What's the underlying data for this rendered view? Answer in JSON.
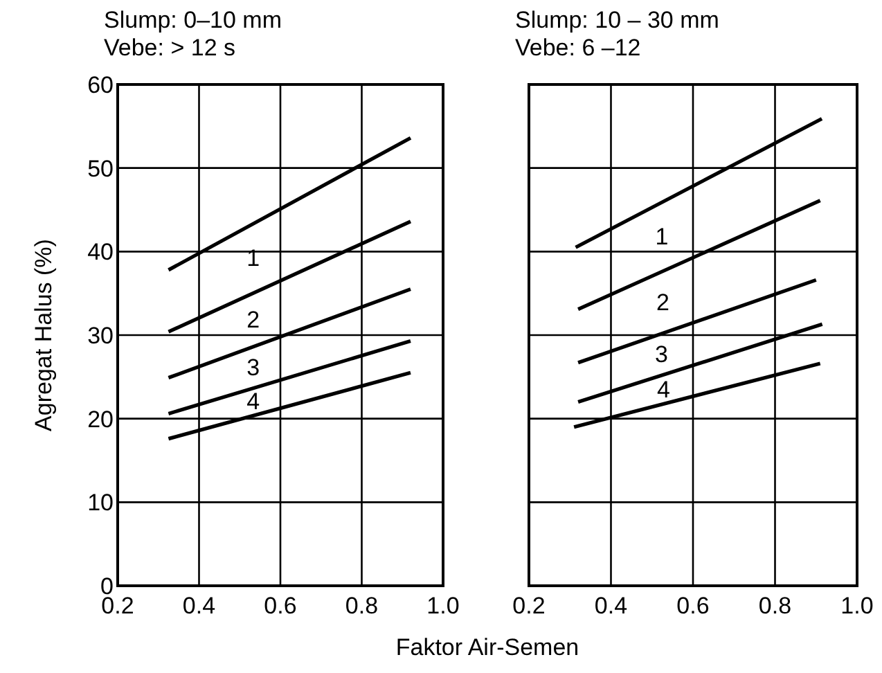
{
  "chart_data": [
    {
      "type": "line",
      "title": "Slump: 0–10 mm",
      "subtitle": "Vebe: > 12 s",
      "xlabel": "Faktor Air-Semen",
      "ylabel": "Agregat Halus (%)",
      "xlim": [
        0.2,
        1.0
      ],
      "xticks": [
        0.2,
        0.4,
        0.6,
        0.8,
        {
          "value": 1.0,
          "label": "1.0"
        }
      ],
      "ylim": [
        0,
        60
      ],
      "yticks": [
        0,
        10,
        20,
        30,
        40,
        50,
        60
      ],
      "grid": true,
      "marker": "none",
      "line_style": "solid",
      "series": [
        {
          "color": "#000000",
          "x": [
            0.325,
            0.92
          ],
          "values": [
            37.8,
            53.6
          ]
        },
        {
          "color": "#000000",
          "x": [
            0.325,
            0.92
          ],
          "values": [
            30.4,
            43.6
          ]
        },
        {
          "color": "#000000",
          "x": [
            0.325,
            0.92
          ],
          "values": [
            24.9,
            35.5
          ]
        },
        {
          "color": "#000000",
          "x": [
            0.325,
            0.92
          ],
          "values": [
            20.6,
            29.3
          ]
        },
        {
          "color": "#000000",
          "x": [
            0.325,
            0.92
          ],
          "values": [
            17.6,
            25.5
          ]
        }
      ],
      "annotations": [
        "1",
        "2",
        "3",
        "4"
      ]
    },
    {
      "type": "line",
      "title": "Slump: 10 – 30 mm",
      "subtitle": "Vebe: 6 –12",
      "xlim": [
        0.2,
        1.0
      ],
      "xticks": [
        0.2,
        0.4,
        0.6,
        0.8,
        {
          "value": 1.0,
          "label": "1.0"
        }
      ],
      "ylim": [
        0,
        60
      ],
      "yticks": [
        0,
        10,
        20,
        30,
        40,
        50,
        60
      ],
      "grid": true,
      "marker": "none",
      "line_style": "solid",
      "tick_labels": "x",
      "series": [
        {
          "color": "#000000",
          "x": [
            0.314,
            0.914
          ],
          "values": [
            40.5,
            55.9
          ]
        },
        {
          "color": "#000000",
          "x": [
            0.32,
            0.91
          ],
          "values": [
            33.1,
            46.1
          ]
        },
        {
          "color": "#000000",
          "x": [
            0.32,
            0.9
          ],
          "values": [
            26.7,
            36.6
          ]
        },
        {
          "color": "#000000",
          "x": [
            0.32,
            0.915
          ],
          "values": [
            22.0,
            31.3
          ]
        },
        {
          "color": "#000000",
          "x": [
            0.31,
            0.91
          ],
          "values": [
            19.0,
            26.6
          ]
        }
      ],
      "annotations": [
        "1",
        "2",
        "3",
        "4"
      ]
    }
  ]
}
